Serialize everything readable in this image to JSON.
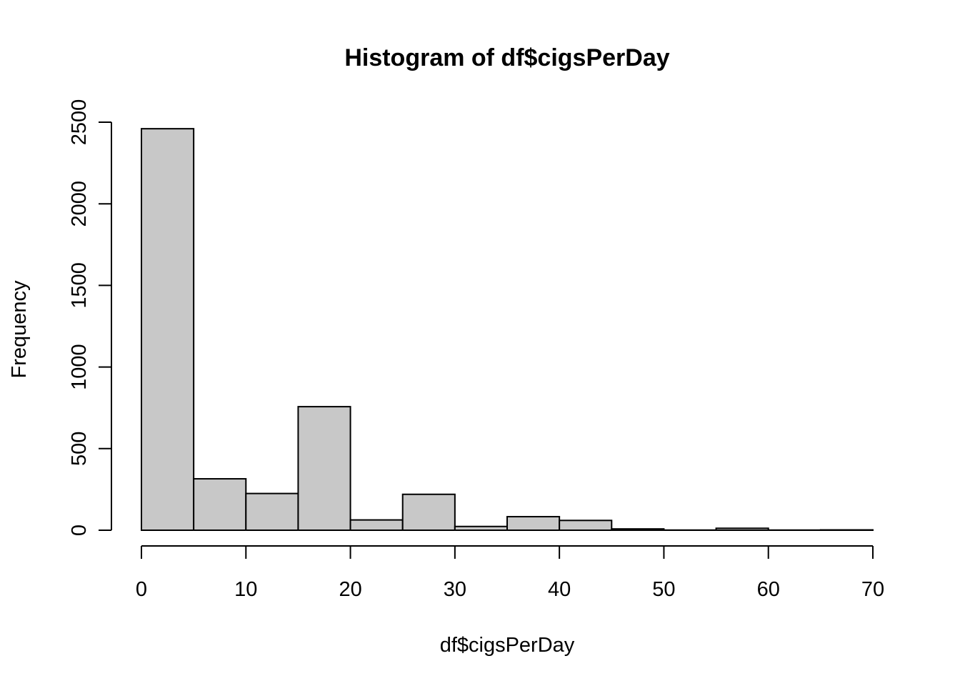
{
  "chart_data": {
    "type": "bar",
    "subtype": "histogram",
    "title": "Histogram of df$cigsPerDay",
    "xlabel": "df$cigsPerDay",
    "ylabel": "Frequency",
    "bin_edges": [
      0,
      5,
      10,
      15,
      20,
      25,
      30,
      35,
      40,
      45,
      50,
      55,
      60,
      65,
      70
    ],
    "values": [
      2460,
      315,
      225,
      757,
      63,
      220,
      23,
      83,
      60,
      8,
      1,
      12,
      1,
      2
    ],
    "xlim": [
      0,
      70
    ],
    "ylim": [
      0,
      2500
    ],
    "x_ticks": [
      0,
      10,
      20,
      30,
      40,
      50,
      60,
      70
    ],
    "y_ticks": [
      0,
      500,
      1000,
      1500,
      2000,
      2500
    ],
    "bar_fill": "#c8c8c8",
    "bar_stroke": "#000000",
    "grid": false,
    "legend": "none"
  }
}
